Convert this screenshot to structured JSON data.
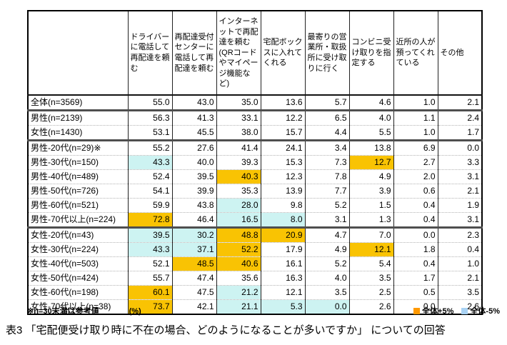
{
  "colors": {
    "cell_plus": "#F9C303",
    "cell_minus": "#CDF3F2",
    "legend_plus": "#FF9900",
    "legend_minus": "#A9D2F3"
  },
  "table": {
    "col_headers": [
      "ドライバーに電話して再配達を頼む",
      "再配達受付センターに電話して再配達を頼む",
      "インターネットで再配達を頼む(QRコードやマイページ機能など)",
      "宅配ボックスに入れてくれる",
      "最寄りの営業所・取扱所に受け取りに行く",
      "コンビニ受け取りを指定する",
      "近所の人が預ってくれている",
      "その他"
    ],
    "rows": [
      {
        "label": "全体(n=3569)",
        "values": [
          55.0,
          43.0,
          35.0,
          13.6,
          5.7,
          4.6,
          1.0,
          2.1
        ],
        "hl": [
          "",
          "",
          "",
          "",
          "",
          "",
          "",
          ""
        ],
        "group_start": false
      },
      {
        "label": "男性(n=2139)",
        "values": [
          56.3,
          41.3,
          33.1,
          12.2,
          6.5,
          4.0,
          1.1,
          2.4
        ],
        "hl": [
          "",
          "",
          "",
          "",
          "",
          "",
          "",
          ""
        ],
        "group_start": true
      },
      {
        "label": "女性(n=1430)",
        "values": [
          53.1,
          45.5,
          38.0,
          15.7,
          4.4,
          5.5,
          1.0,
          1.7
        ],
        "hl": [
          "",
          "",
          "",
          "",
          "",
          "",
          "",
          ""
        ],
        "group_start": false
      },
      {
        "label": "男性-20代(n=29)※",
        "values": [
          55.2,
          27.6,
          41.4,
          24.1,
          3.4,
          13.8,
          6.9,
          0.0
        ],
        "hl": [
          "",
          "",
          "",
          "",
          "",
          "",
          "",
          ""
        ],
        "group_start": true
      },
      {
        "label": "男性-30代(n=150)",
        "values": [
          43.3,
          40.0,
          39.3,
          15.3,
          7.3,
          12.7,
          2.7,
          3.3
        ],
        "hl": [
          "b",
          "",
          "",
          "",
          "",
          "o",
          "",
          ""
        ],
        "group_start": false
      },
      {
        "label": "男性-40代(n=489)",
        "values": [
          52.4,
          39.5,
          40.3,
          12.3,
          7.8,
          4.9,
          2.0,
          3.1
        ],
        "hl": [
          "",
          "",
          "o",
          "",
          "",
          "",
          "",
          ""
        ],
        "group_start": false
      },
      {
        "label": "男性-50代(n=726)",
        "values": [
          54.1,
          39.9,
          35.3,
          13.9,
          7.7,
          3.9,
          0.6,
          2.1
        ],
        "hl": [
          "",
          "",
          "",
          "",
          "",
          "",
          "",
          ""
        ],
        "group_start": false
      },
      {
        "label": "男性-60代(n=521)",
        "values": [
          59.9,
          43.8,
          28.0,
          9.8,
          5.2,
          1.5,
          0.4,
          1.9
        ],
        "hl": [
          "",
          "",
          "b",
          "",
          "",
          "",
          "",
          ""
        ],
        "group_start": false
      },
      {
        "label": "男性-70代以上(n=224)",
        "values": [
          72.8,
          46.4,
          16.5,
          8.0,
          3.1,
          1.3,
          0.4,
          3.1
        ],
        "hl": [
          "o",
          "",
          "b",
          "b",
          "",
          "",
          "",
          ""
        ],
        "group_start": false
      },
      {
        "label": "女性-20代(n=43)",
        "values": [
          39.5,
          30.2,
          48.8,
          20.9,
          4.7,
          7.0,
          0.0,
          2.3
        ],
        "hl": [
          "b",
          "b",
          "o",
          "o",
          "",
          "",
          "",
          ""
        ],
        "group_start": true
      },
      {
        "label": "女性-30代(n=224)",
        "values": [
          43.3,
          37.1,
          52.2,
          17.9,
          4.9,
          12.1,
          1.8,
          0.4
        ],
        "hl": [
          "b",
          "b",
          "o",
          "",
          "",
          "o",
          "",
          ""
        ],
        "group_start": false
      },
      {
        "label": "女性-40代(n=503)",
        "values": [
          52.1,
          48.5,
          40.6,
          16.1,
          5.2,
          5.4,
          0.4,
          1.0
        ],
        "hl": [
          "",
          "o",
          "o",
          "",
          "",
          "",
          "",
          ""
        ],
        "group_start": false
      },
      {
        "label": "女性-50代(n=424)",
        "values": [
          55.7,
          47.4,
          35.6,
          16.3,
          4.0,
          3.5,
          1.7,
          2.1
        ],
        "hl": [
          "",
          "",
          "",
          "",
          "",
          "",
          "",
          ""
        ],
        "group_start": false
      },
      {
        "label": "女性-60代(n=198)",
        "values": [
          60.1,
          47.5,
          21.2,
          12.1,
          3.5,
          2.5,
          0.5,
          3.5
        ],
        "hl": [
          "o",
          "",
          "b",
          "",
          "",
          "",
          "",
          ""
        ],
        "group_start": false
      },
      {
        "label": "女性-70代以上(n=38)",
        "values": [
          73.7,
          42.1,
          21.1,
          5.3,
          0.0,
          2.6,
          0.0,
          2.6
        ],
        "hl": [
          "o",
          "",
          "b",
          "b",
          "b",
          "",
          "",
          ""
        ],
        "group_start": false
      }
    ]
  },
  "notes": {
    "reference": "※n=30未満は参考値",
    "unit": "(%)"
  },
  "legend": {
    "plus_label": "全体+5%",
    "minus_label": "全体-5%"
  },
  "caption": "表3 「宅配便受け取り時に不在の場合、どのようになることが多いですか」 についての回答"
}
